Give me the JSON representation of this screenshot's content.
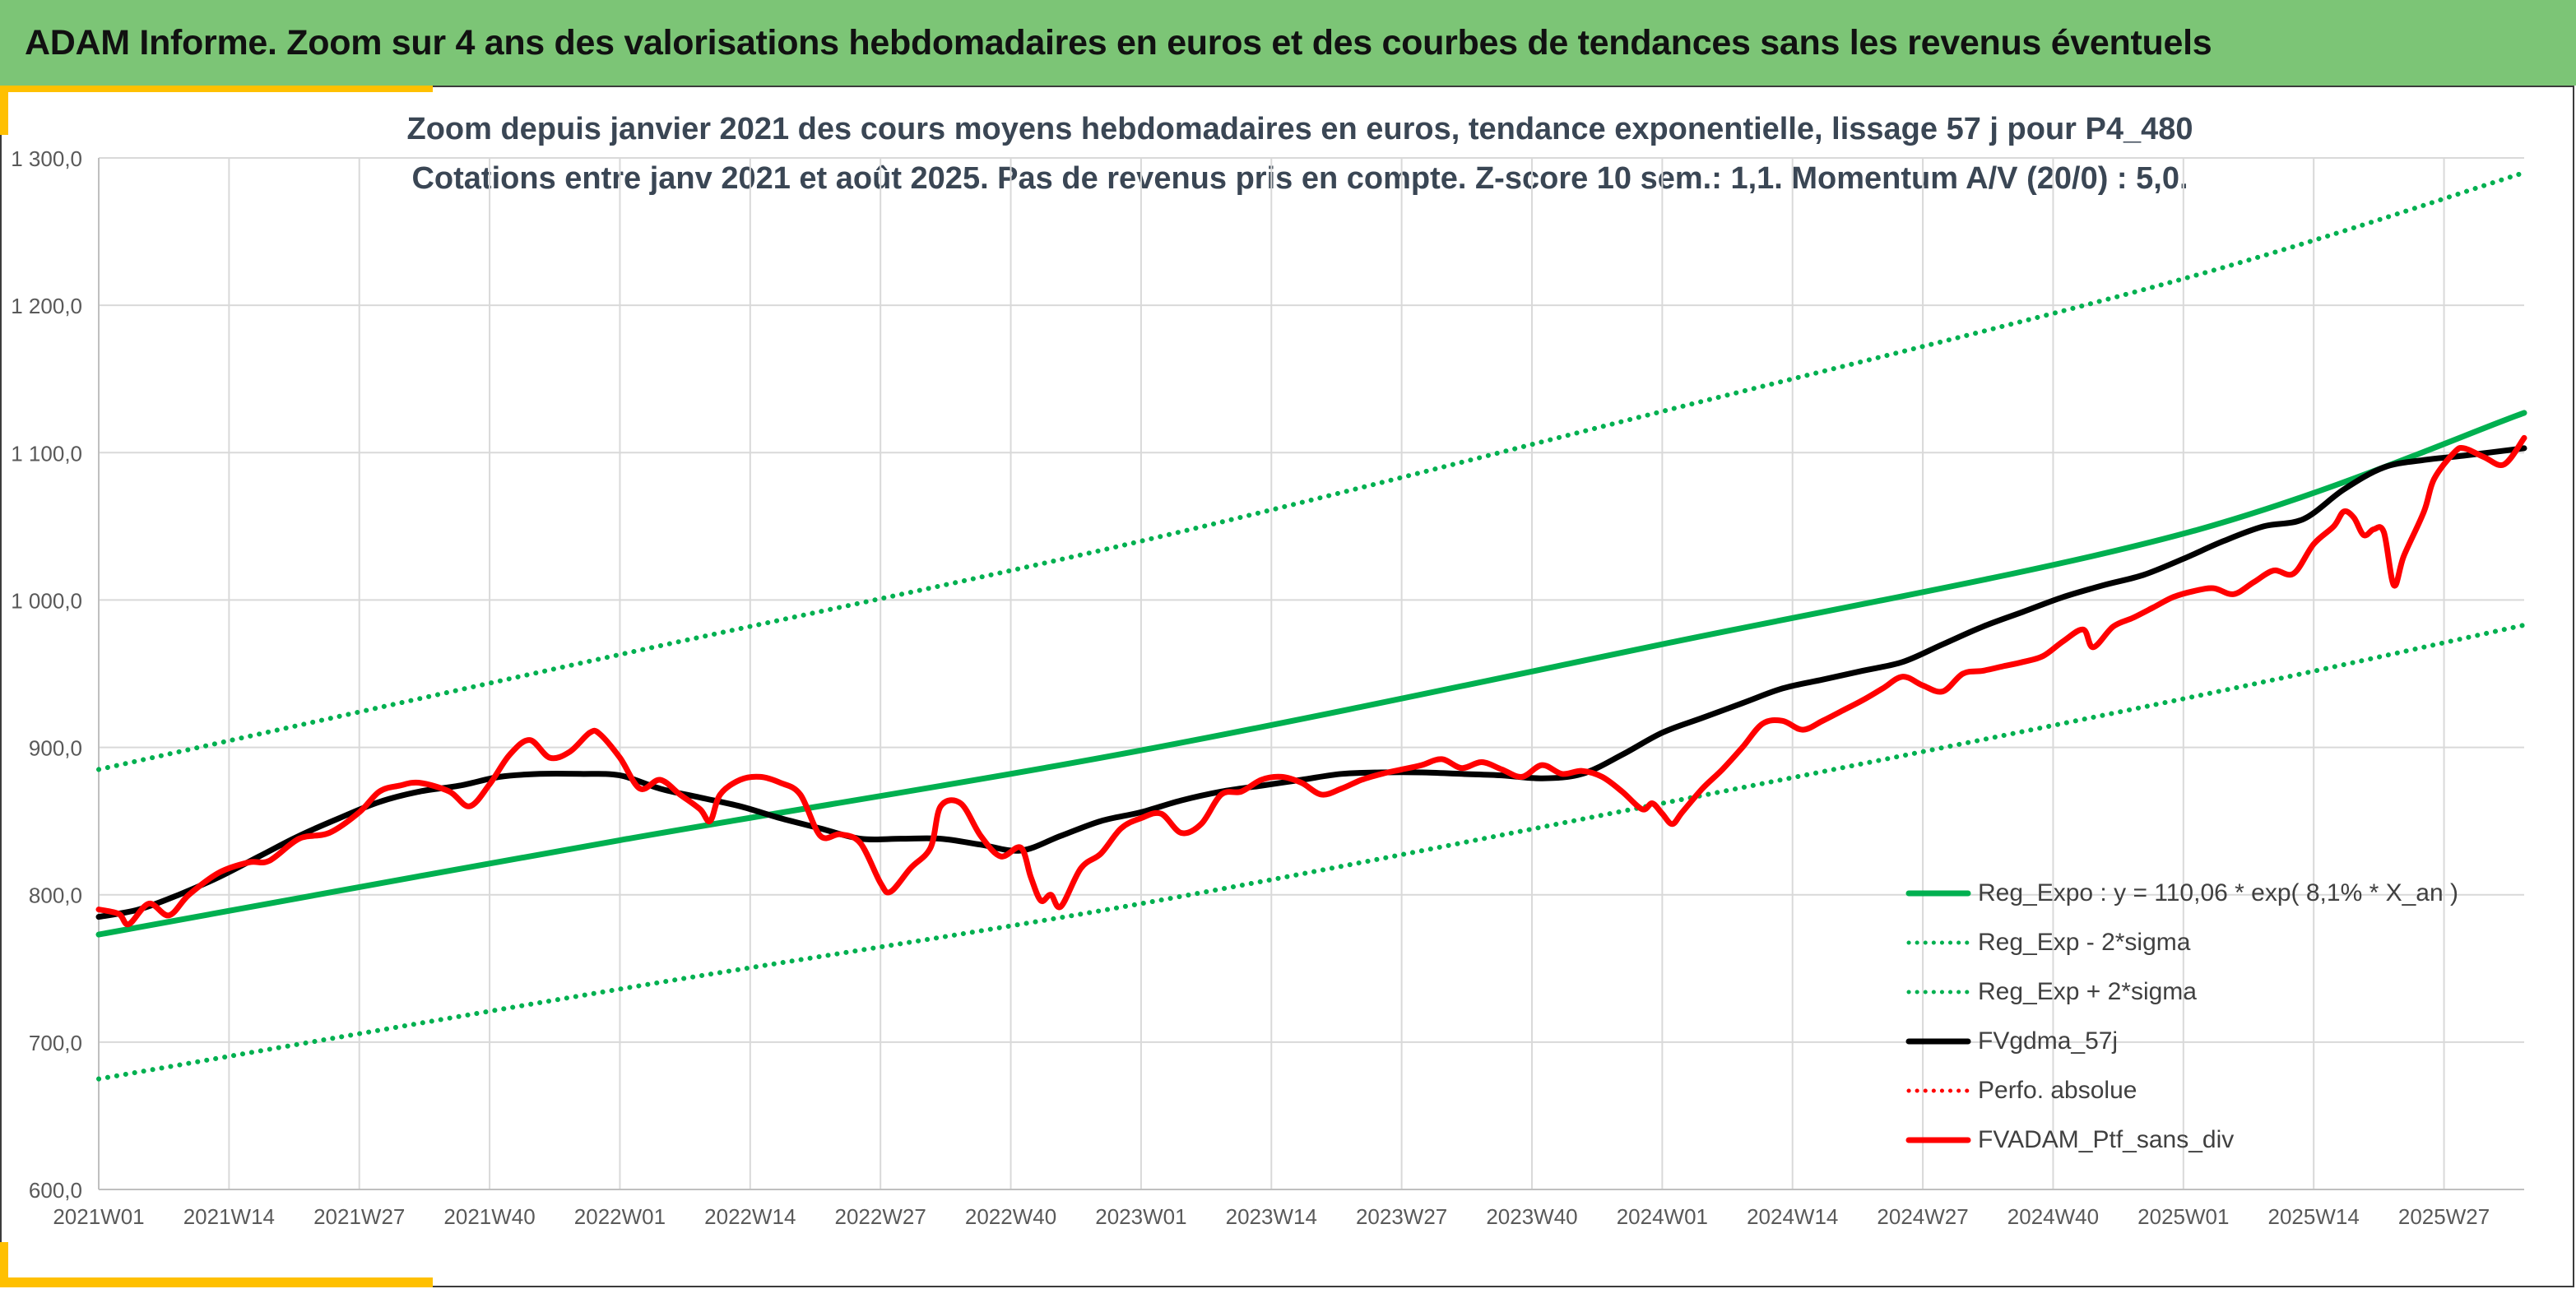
{
  "banner": {
    "title": "ADAM Informe. Zoom sur 4 ans des valorisations hebdomadaires en euros et des courbes de tendances sans les revenus éventuels"
  },
  "colors": {
    "banner_bg": "#7cc576",
    "trend": "#00b050",
    "sigma": "#00b050",
    "gdma": "#000000",
    "ptf": "#ff0000",
    "accent": "#ffc000"
  },
  "chart_data": {
    "type": "line",
    "title": "Zoom depuis janvier 2021 des cours moyens hebdomadaires en euros, tendance exponentielle, lissage 57 j pour P4_480",
    "subtitle": "Cotations entre janv 2021 et août 2025. Pas de revenus pris en compte. Z-score 10 sem.: 1,1. Momentum A/V (20/0) : 5,0.",
    "ylim": [
      600,
      1300
    ],
    "yticks": [
      "600,0",
      "700,0",
      "800,0",
      "900,0",
      "1 000,0",
      "1 100,0",
      "1 200,0",
      "1 300,0"
    ],
    "xticks": [
      "2021W01",
      "2021W14",
      "2021W27",
      "2021W40",
      "2022W01",
      "2022W14",
      "2022W27",
      "2022W40",
      "2023W01",
      "2023W14",
      "2023W27",
      "2023W40",
      "2024W01",
      "2024W14",
      "2024W27",
      "2024W40",
      "2025W01",
      "2025W14",
      "2025W27"
    ],
    "grid": true,
    "legend_position": "bottom-right",
    "x_week_range": [
      0,
      242
    ],
    "series": [
      {
        "name": "Reg_Expo : y = 110,06 * exp( 8,1% *  X_an )",
        "style": "solid-thick",
        "color": "#00b050",
        "points": [
          [
            0,
            773
          ],
          [
            52,
            837
          ],
          [
            104,
            898
          ],
          [
            156,
            970
          ],
          [
            208,
            1045
          ],
          [
            242,
            1127
          ]
        ]
      },
      {
        "name": "Reg_Exp - 2*sigma",
        "style": "dotted",
        "color": "#00b050",
        "points": [
          [
            0,
            675
          ],
          [
            52,
            736
          ],
          [
            104,
            794
          ],
          [
            156,
            862
          ],
          [
            208,
            933
          ],
          [
            242,
            983
          ]
        ]
      },
      {
        "name": "Reg_Exp + 2*sigma",
        "style": "dotted",
        "color": "#00b050",
        "points": [
          [
            0,
            885
          ],
          [
            52,
            963
          ],
          [
            104,
            1040
          ],
          [
            156,
            1128
          ],
          [
            208,
            1218
          ],
          [
            242,
            1290
          ]
        ]
      },
      {
        "name": "FVgdma_57j",
        "style": "solid-thick",
        "color": "#000000",
        "points": [
          [
            0,
            785
          ],
          [
            4,
            790
          ],
          [
            8,
            800
          ],
          [
            12,
            812
          ],
          [
            16,
            826
          ],
          [
            20,
            840
          ],
          [
            24,
            852
          ],
          [
            28,
            863
          ],
          [
            32,
            870
          ],
          [
            36,
            874
          ],
          [
            40,
            880
          ],
          [
            44,
            882
          ],
          [
            48,
            882
          ],
          [
            52,
            881
          ],
          [
            56,
            872
          ],
          [
            60,
            866
          ],
          [
            64,
            860
          ],
          [
            68,
            852
          ],
          [
            72,
            845
          ],
          [
            76,
            838
          ],
          [
            80,
            838
          ],
          [
            84,
            838
          ],
          [
            88,
            834
          ],
          [
            92,
            830
          ],
          [
            96,
            840
          ],
          [
            100,
            850
          ],
          [
            104,
            856
          ],
          [
            108,
            864
          ],
          [
            112,
            870
          ],
          [
            116,
            874
          ],
          [
            120,
            878
          ],
          [
            124,
            882
          ],
          [
            128,
            883
          ],
          [
            132,
            883
          ],
          [
            136,
            882
          ],
          [
            140,
            881
          ],
          [
            144,
            879
          ],
          [
            148,
            882
          ],
          [
            152,
            895
          ],
          [
            156,
            910
          ],
          [
            160,
            920
          ],
          [
            164,
            930
          ],
          [
            168,
            940
          ],
          [
            172,
            946
          ],
          [
            176,
            952
          ],
          [
            180,
            958
          ],
          [
            184,
            970
          ],
          [
            188,
            982
          ],
          [
            192,
            992
          ],
          [
            196,
            1002
          ],
          [
            200,
            1010
          ],
          [
            204,
            1017
          ],
          [
            208,
            1028
          ],
          [
            212,
            1040
          ],
          [
            216,
            1050
          ],
          [
            220,
            1055
          ],
          [
            224,
            1075
          ],
          [
            228,
            1090
          ],
          [
            232,
            1095
          ],
          [
            236,
            1098
          ],
          [
            242,
            1103
          ]
        ]
      },
      {
        "name": "Perfo. absolue",
        "style": "dotted",
        "color": "#ff0000",
        "points": []
      },
      {
        "name": "FVADAM_Ptf_sans_div",
        "style": "solid-thick",
        "color": "#ff0000",
        "points": [
          [
            0,
            790
          ],
          [
            2,
            787
          ],
          [
            3,
            780
          ],
          [
            5,
            794
          ],
          [
            7,
            786
          ],
          [
            9,
            800
          ],
          [
            12,
            815
          ],
          [
            15,
            822
          ],
          [
            17,
            823
          ],
          [
            20,
            838
          ],
          [
            23,
            842
          ],
          [
            26,
            856
          ],
          [
            28,
            870
          ],
          [
            30,
            874
          ],
          [
            32,
            876
          ],
          [
            35,
            870
          ],
          [
            37,
            860
          ],
          [
            39,
            875
          ],
          [
            41,
            895
          ],
          [
            43,
            905
          ],
          [
            45,
            893
          ],
          [
            47,
            897
          ],
          [
            49,
            910
          ],
          [
            50,
            909
          ],
          [
            52,
            893
          ],
          [
            54,
            872
          ],
          [
            56,
            878
          ],
          [
            58,
            868
          ],
          [
            60,
            858
          ],
          [
            61,
            850
          ],
          [
            62,
            868
          ],
          [
            64,
            878
          ],
          [
            66,
            880
          ],
          [
            68,
            876
          ],
          [
            70,
            868
          ],
          [
            72,
            840
          ],
          [
            74,
            841
          ],
          [
            76,
            835
          ],
          [
            78,
            808
          ],
          [
            79,
            802
          ],
          [
            81,
            818
          ],
          [
            83,
            832
          ],
          [
            84,
            860
          ],
          [
            86,
            862
          ],
          [
            88,
            840
          ],
          [
            90,
            826
          ],
          [
            92,
            832
          ],
          [
            93,
            812
          ],
          [
            94,
            796
          ],
          [
            95,
            800
          ],
          [
            96,
            792
          ],
          [
            98,
            818
          ],
          [
            100,
            828
          ],
          [
            102,
            845
          ],
          [
            104,
            852
          ],
          [
            106,
            855
          ],
          [
            108,
            842
          ],
          [
            110,
            848
          ],
          [
            112,
            868
          ],
          [
            114,
            870
          ],
          [
            116,
            878
          ],
          [
            118,
            880
          ],
          [
            120,
            876
          ],
          [
            122,
            868
          ],
          [
            124,
            872
          ],
          [
            126,
            878
          ],
          [
            128,
            882
          ],
          [
            130,
            885
          ],
          [
            132,
            888
          ],
          [
            134,
            892
          ],
          [
            136,
            886
          ],
          [
            138,
            890
          ],
          [
            140,
            885
          ],
          [
            142,
            880
          ],
          [
            144,
            888
          ],
          [
            146,
            882
          ],
          [
            148,
            884
          ],
          [
            150,
            880
          ],
          [
            152,
            870
          ],
          [
            154,
            858
          ],
          [
            155,
            862
          ],
          [
            156,
            855
          ],
          [
            157,
            848
          ],
          [
            158,
            856
          ],
          [
            160,
            872
          ],
          [
            162,
            885
          ],
          [
            164,
            900
          ],
          [
            166,
            916
          ],
          [
            168,
            918
          ],
          [
            170,
            912
          ],
          [
            172,
            918
          ],
          [
            174,
            925
          ],
          [
            176,
            932
          ],
          [
            178,
            940
          ],
          [
            180,
            948
          ],
          [
            182,
            942
          ],
          [
            184,
            938
          ],
          [
            186,
            950
          ],
          [
            188,
            952
          ],
          [
            190,
            955
          ],
          [
            192,
            958
          ],
          [
            194,
            962
          ],
          [
            196,
            972
          ],
          [
            198,
            980
          ],
          [
            199,
            968
          ],
          [
            201,
            982
          ],
          [
            203,
            988
          ],
          [
            205,
            995
          ],
          [
            207,
            1002
          ],
          [
            209,
            1006
          ],
          [
            211,
            1008
          ],
          [
            213,
            1004
          ],
          [
            215,
            1012
          ],
          [
            217,
            1020
          ],
          [
            219,
            1018
          ],
          [
            221,
            1038
          ],
          [
            223,
            1050
          ],
          [
            224,
            1060
          ],
          [
            225,
            1056
          ],
          [
            226,
            1044
          ],
          [
            227,
            1048
          ],
          [
            228,
            1046
          ],
          [
            229,
            1010
          ],
          [
            230,
            1030
          ],
          [
            232,
            1060
          ],
          [
            233,
            1082
          ],
          [
            235,
            1100
          ],
          [
            236,
            1103
          ],
          [
            238,
            1097
          ],
          [
            240,
            1092
          ],
          [
            242,
            1110
          ]
        ]
      }
    ]
  }
}
